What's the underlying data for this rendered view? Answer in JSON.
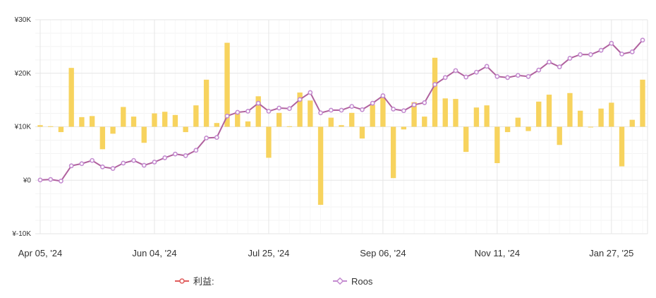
{
  "chart_data": {
    "type": "bar+line",
    "title": "",
    "xlabel": "",
    "ylabel": "",
    "ylim": [
      -10000,
      30000
    ],
    "y_ticks": [
      {
        "value": 30000,
        "label": "¥30K"
      },
      {
        "value": 20000,
        "label": "¥20K"
      },
      {
        "value": 10000,
        "label": "¥10K"
      },
      {
        "value": 0,
        "label": "¥0"
      },
      {
        "value": -10000,
        "label": "¥-10K"
      }
    ],
    "x_ticks": [
      {
        "index": 0,
        "label": "Apr 05, '24"
      },
      {
        "index": 11,
        "label": "Jun 04, '24"
      },
      {
        "index": 22,
        "label": "Jul 25, '24"
      },
      {
        "index": 33,
        "label": "Sep 06, '24"
      },
      {
        "index": 44,
        "label": "Nov 11, '24"
      },
      {
        "index": 55,
        "label": "Jan 27, '25"
      }
    ],
    "grid": true,
    "legend_position": "bottom",
    "colors": {
      "bars": "#f7d35e",
      "line1": "#e05c5c",
      "line2": "#b0629e",
      "marker2": "#c48bd0",
      "grid": "#e6e6e6"
    },
    "series": [
      {
        "name": "利益:",
        "kind": "bar",
        "values": [
          10300,
          10100,
          9000,
          21000,
          11800,
          12000,
          5800,
          8700,
          13700,
          11900,
          7000,
          12500,
          12800,
          12200,
          9000,
          14000,
          18800,
          10700,
          25700,
          12500,
          11000,
          15700,
          4200,
          12600,
          10100,
          16400,
          14900,
          -4600,
          11700,
          10300,
          12600,
          7800,
          14100,
          15500,
          400,
          9500,
          14600,
          11900,
          22900,
          15300,
          15200,
          5300,
          13600,
          14000,
          3200,
          9000,
          11700,
          9200,
          14700,
          16000,
          6600,
          16300,
          13000,
          10000,
          13400,
          14500,
          2600,
          11300,
          18800
        ]
      },
      {
        "name": "Roos",
        "kind": "line",
        "values": [
          50,
          150,
          -150,
          2700,
          3100,
          3700,
          2500,
          2200,
          3200,
          3700,
          2800,
          3400,
          4200,
          4900,
          4600,
          5600,
          7900,
          8000,
          12000,
          12700,
          12900,
          14400,
          12900,
          13500,
          13400,
          15100,
          16400,
          12600,
          13100,
          13100,
          13800,
          13200,
          14400,
          15800,
          13300,
          13000,
          14100,
          14500,
          17900,
          19200,
          20500,
          19300,
          20200,
          21300,
          19400,
          19200,
          19600,
          19400,
          20600,
          22100,
          21200,
          22800,
          23500,
          23500,
          24300,
          25600,
          23600,
          24000,
          26200
        ]
      }
    ]
  }
}
